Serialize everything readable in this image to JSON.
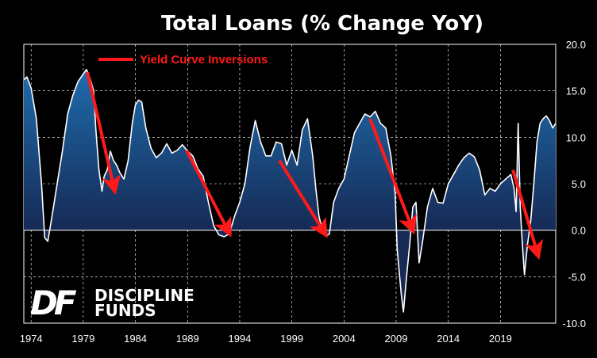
{
  "chart_data": {
    "type": "area",
    "title": "Total Loans (% Change YoY)",
    "xlabel": "",
    "ylabel": "",
    "xlim": [
      1973.3,
      2024.3
    ],
    "ylim": [
      -10,
      20
    ],
    "x_ticks": [
      "1974",
      "1979",
      "1984",
      "1989",
      "1994",
      "1999",
      "2004",
      "2009",
      "2014",
      "2019"
    ],
    "y_ticks": [
      "20.0",
      "15.0",
      "10.0",
      "5.0",
      "0.0",
      "-5.0",
      "-10.0"
    ],
    "grid": "vertical-and-horizontal-dashed",
    "y_axis_side": "right",
    "legend_position": "top-left",
    "legend": [
      {
        "label": "Yield Curve Inversions",
        "color": "#ff1a1a"
      }
    ],
    "series": [
      {
        "name": "",
        "color": "#ffffff",
        "fill_top": "#1f6fb0",
        "fill_bottom": "#162a55",
        "x": [
          1973.3,
          1973.6,
          1974.0,
          1974.5,
          1975.0,
          1975.3,
          1975.6,
          1976.0,
          1976.5,
          1977.0,
          1977.5,
          1978.0,
          1978.5,
          1979.0,
          1979.3,
          1979.6,
          1980.0,
          1980.2,
          1980.5,
          1980.8,
          1981.0,
          1981.3,
          1981.6,
          1981.9,
          1982.2,
          1982.5,
          1982.9,
          1983.3,
          1983.7,
          1984.0,
          1984.3,
          1984.6,
          1985.0,
          1985.5,
          1986.0,
          1986.5,
          1987.0,
          1987.5,
          1988.0,
          1988.5,
          1989.0,
          1989.5,
          1990.0,
          1990.5,
          1991.0,
          1991.5,
          1992.0,
          1992.5,
          1993.0,
          1993.5,
          1994.0,
          1994.5,
          1995.0,
          1995.5,
          1996.0,
          1996.5,
          1997.0,
          1997.5,
          1998.0,
          1998.5,
          1999.0,
          1999.5,
          2000.0,
          2000.5,
          2001.0,
          2001.3,
          2001.6,
          2002.0,
          2002.3,
          2002.6,
          2003.0,
          2003.5,
          2004.0,
          2004.5,
          2005.0,
          2005.5,
          2006.0,
          2006.5,
          2007.0,
          2007.5,
          2008.0,
          2008.5,
          2008.9,
          2009.1,
          2009.3,
          2009.5,
          2009.7,
          2010.0,
          2010.3,
          2010.6,
          2010.9,
          2011.2,
          2011.5,
          2012.0,
          2012.5,
          2013.0,
          2013.5,
          2014.0,
          2014.5,
          2015.0,
          2015.5,
          2016.0,
          2016.5,
          2017.0,
          2017.5,
          2018.0,
          2018.5,
          2019.0,
          2019.5,
          2020.0,
          2020.3,
          2020.5,
          2020.7,
          2020.9,
          2021.1,
          2021.3,
          2021.6,
          2021.9,
          2022.2,
          2022.5,
          2022.8,
          2023.1,
          2023.4,
          2023.7,
          2024.0,
          2024.3
        ],
        "y": [
          16.2,
          16.5,
          15.3,
          12.0,
          5.0,
          -0.8,
          -1.2,
          1.5,
          5.0,
          8.5,
          12.5,
          14.5,
          16.0,
          16.8,
          17.3,
          16.5,
          15.0,
          11.0,
          6.5,
          4.2,
          5.8,
          6.5,
          8.5,
          7.5,
          7.0,
          6.2,
          5.5,
          7.5,
          11.5,
          13.5,
          14.0,
          13.8,
          11.0,
          8.8,
          7.8,
          8.3,
          9.3,
          8.3,
          8.6,
          9.2,
          8.5,
          8.0,
          6.6,
          5.8,
          3.0,
          0.5,
          -0.5,
          -0.7,
          -0.4,
          1.5,
          3.0,
          5.0,
          9.0,
          11.8,
          9.5,
          8.0,
          8.0,
          9.5,
          9.3,
          7.0,
          8.6,
          7.0,
          10.8,
          12.0,
          8.0,
          4.5,
          1.5,
          -0.3,
          -0.6,
          -0.4,
          3.0,
          4.5,
          5.5,
          8.0,
          10.5,
          11.5,
          12.5,
          12.2,
          12.8,
          11.5,
          11.0,
          8.0,
          4.0,
          -2.0,
          -4.5,
          -7.0,
          -8.8,
          -5.0,
          -1.5,
          2.5,
          3.0,
          -3.5,
          -1.5,
          2.5,
          4.5,
          3.0,
          2.9,
          5.0,
          6.0,
          7.0,
          7.8,
          8.3,
          7.9,
          6.5,
          3.8,
          4.5,
          4.2,
          5.0,
          5.5,
          6.0,
          4.5,
          2.0,
          11.5,
          2.5,
          -1.5,
          -4.8,
          -1.5,
          1.0,
          5.0,
          9.5,
          11.5,
          12.0,
          12.3,
          11.8,
          11.0,
          11.5
        ]
      }
    ],
    "annotations": [
      {
        "type": "arrow",
        "color": "#ff1a1a",
        "x1": 1979.4,
        "y1": 17.0,
        "x2": 1982.0,
        "y2": 4.3
      },
      {
        "type": "arrow",
        "color": "#ff1a1a",
        "x1": 1988.9,
        "y1": 8.6,
        "x2": 1993.0,
        "y2": -0.3
      },
      {
        "type": "arrow",
        "color": "#ff1a1a",
        "x1": 1997.8,
        "y1": 7.5,
        "x2": 2002.2,
        "y2": -0.4
      },
      {
        "type": "arrow",
        "color": "#ff1a1a",
        "x1": 2006.5,
        "y1": 12.0,
        "x2": 2010.6,
        "y2": 0.0
      },
      {
        "type": "arrow",
        "color": "#ff1a1a",
        "x1": 2020.2,
        "y1": 6.5,
        "x2": 2022.6,
        "y2": -2.7
      }
    ]
  },
  "branding": {
    "logo_mark": "DF",
    "logo_line1": "DISCIPLINE",
    "logo_line2": "FUNDS"
  }
}
